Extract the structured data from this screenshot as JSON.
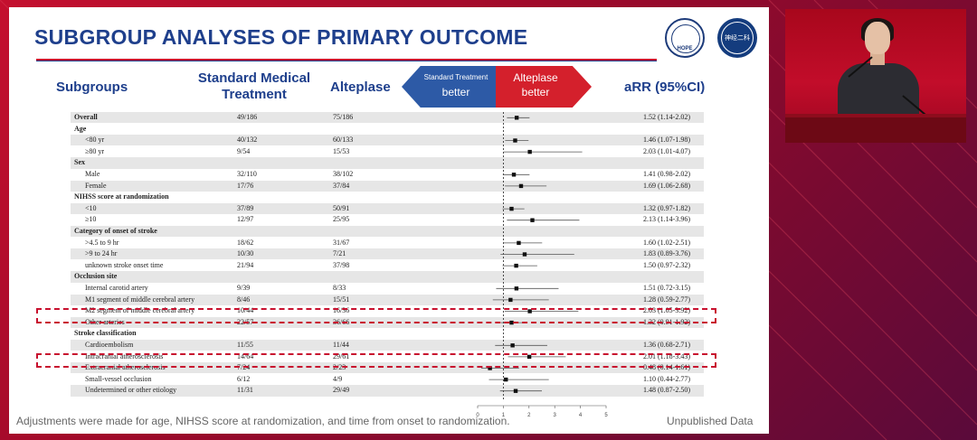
{
  "slide": {
    "title": "SUBGROUP ANALYSES OF PRIMARY OUTCOME",
    "logo_left_text": "HOPE",
    "logo_right_text": "神经二科"
  },
  "headers": {
    "subgroups": "Subgroups",
    "standard": "Standard Medical Treatment",
    "alteplase": "Alteplase",
    "arrow_left_small": "Standard Treatment",
    "arrow_left_big": "better",
    "arrow_right_top": "Alteplase",
    "arrow_right_bottom": "better",
    "arr": "aRR (95%CI)"
  },
  "rows": [
    {
      "label": "Overall",
      "std": "49/186",
      "alt": "75/186",
      "arr": "1.52 (1.14-2.02)"
    },
    {
      "label": "Age",
      "std": "",
      "alt": "",
      "arr": ""
    },
    {
      "label": "<80 yr",
      "std": "40/132",
      "alt": "60/133",
      "arr": "1.46 (1.07-1.98)"
    },
    {
      "label": "≥80 yr",
      "std": "9/54",
      "alt": "15/53",
      "arr": "2.03 (1.01-4.07)"
    },
    {
      "label": "Sex",
      "std": "",
      "alt": "",
      "arr": ""
    },
    {
      "label": "Male",
      "std": "32/110",
      "alt": "38/102",
      "arr": "1.41 (0.98-2.02)"
    },
    {
      "label": "Female",
      "std": "17/76",
      "alt": "37/84",
      "arr": "1.69 (1.06-2.68)"
    },
    {
      "label": "NIHSS score at randomization",
      "std": "",
      "alt": "",
      "arr": ""
    },
    {
      "label": "<10",
      "std": "37/89",
      "alt": "50/91",
      "arr": "1.32 (0.97-1.82)"
    },
    {
      "label": "≥10",
      "std": "12/97",
      "alt": "25/95",
      "arr": "2.13 (1.14-3.96)"
    },
    {
      "label": "Category of onset of stroke",
      "std": "",
      "alt": "",
      "arr": ""
    },
    {
      "label": ">4.5 to 9 hr",
      "std": "18/62",
      "alt": "31/67",
      "arr": "1.60 (1.02-2.51)"
    },
    {
      "label": ">9 to 24 hr",
      "std": "10/30",
      "alt": "7/21",
      "arr": "1.83 (0.89-3.76)"
    },
    {
      "label": "unknown stroke onset time",
      "std": "21/94",
      "alt": "37/98",
      "arr": "1.50 (0.97-2.32)"
    },
    {
      "label": "Occlusion site",
      "std": "",
      "alt": "",
      "arr": ""
    },
    {
      "label": "Internal carotid artery",
      "std": "9/39",
      "alt": "8/33",
      "arr": "1.51 (0.72-3.15)"
    },
    {
      "label": "M1 segment of middle cerebral artery",
      "std": "8/46",
      "alt": "15/51",
      "arr": "1.28 (0.59-2.77)"
    },
    {
      "label": "M2 segment of middle cerebral artery",
      "std": "10/44",
      "alt": "16/36",
      "arr": "2.03 (1.05-3.92)"
    },
    {
      "label": "Other arteries",
      "std": "22/57",
      "alt": "36/66",
      "arr": "1.32 (0.91-1.92)"
    },
    {
      "label": "Stroke classification",
      "std": "",
      "alt": "",
      "arr": ""
    },
    {
      "label": "Cardioembolism",
      "std": "11/55",
      "alt": "11/44",
      "arr": "1.36 (0.68-2.71)"
    },
    {
      "label": "Intracranial atherosclerosis",
      "std": "14/64",
      "alt": "29/61",
      "arr": "2.01 (1.18-3.43)"
    },
    {
      "label": "Extracranial atherosclerosis",
      "std": "7/24",
      "alt": "2/23",
      "arr": "0.48 (0.14-1.61)"
    },
    {
      "label": "Small-vessel occlusion",
      "std": "6/12",
      "alt": "4/9",
      "arr": "1.10 (0.44-2.77)"
    },
    {
      "label": "Undetermined or other etiology",
      "std": "11/31",
      "alt": "29/49",
      "arr": "1.48 (0.87-2.50)"
    }
  ],
  "chart_data": {
    "type": "scatter",
    "xlim": [
      0,
      5
    ],
    "xticks": [
      "0",
      "1",
      "2",
      "3",
      "4",
      "5"
    ],
    "reference_line": 1,
    "points": [
      {
        "label": "Overall",
        "est": 1.52,
        "lo": 1.14,
        "hi": 2.02
      },
      {
        "label": "<80 yr",
        "est": 1.46,
        "lo": 1.07,
        "hi": 1.98
      },
      {
        "label": "≥80 yr",
        "est": 2.03,
        "lo": 1.01,
        "hi": 4.07
      },
      {
        "label": "Male",
        "est": 1.41,
        "lo": 0.98,
        "hi": 2.02
      },
      {
        "label": "Female",
        "est": 1.69,
        "lo": 1.06,
        "hi": 2.68
      },
      {
        "label": "<10",
        "est": 1.32,
        "lo": 0.97,
        "hi": 1.82
      },
      {
        "label": "≥10",
        "est": 2.13,
        "lo": 1.14,
        "hi": 3.96
      },
      {
        "label": ">4.5 to 9 hr",
        "est": 1.6,
        "lo": 1.02,
        "hi": 2.51
      },
      {
        "label": ">9 to 24 hr",
        "est": 1.83,
        "lo": 0.89,
        "hi": 3.76
      },
      {
        "label": "unknown stroke onset time",
        "est": 1.5,
        "lo": 0.97,
        "hi": 2.32
      },
      {
        "label": "Internal carotid artery",
        "est": 1.51,
        "lo": 0.72,
        "hi": 3.15
      },
      {
        "label": "M1 segment of middle cerebral artery",
        "est": 1.28,
        "lo": 0.59,
        "hi": 2.77
      },
      {
        "label": "M2 segment of middle cerebral artery",
        "est": 2.03,
        "lo": 1.05,
        "hi": 3.92
      },
      {
        "label": "Other arteries",
        "est": 1.32,
        "lo": 0.91,
        "hi": 1.92
      },
      {
        "label": "Cardioembolism",
        "est": 1.36,
        "lo": 0.68,
        "hi": 2.71
      },
      {
        "label": "Intracranial atherosclerosis",
        "est": 2.01,
        "lo": 1.18,
        "hi": 3.43
      },
      {
        "label": "Extracranial atherosclerosis",
        "est": 0.48,
        "lo": 0.14,
        "hi": 1.61
      },
      {
        "label": "Small-vessel occlusion",
        "est": 1.1,
        "lo": 0.44,
        "hi": 2.77
      },
      {
        "label": "Undetermined or other etiology",
        "est": 1.48,
        "lo": 0.87,
        "hi": 2.5
      }
    ]
  },
  "highlighted_rows": [
    "M2 segment of middle cerebral artery",
    "Intracranial atherosclerosis"
  ],
  "footer": {
    "footnote": "Adjustments were made for age, NIHSS score at randomization, and time from onset to randomization.",
    "unpublished": "Unpublished Data"
  },
  "colors": {
    "title_blue": "#1e3f8c",
    "accent_red": "#c8102e",
    "arrow_blue": "#2d5aa6",
    "arrow_red": "#d4202c",
    "background_red": "#c40f2e"
  }
}
